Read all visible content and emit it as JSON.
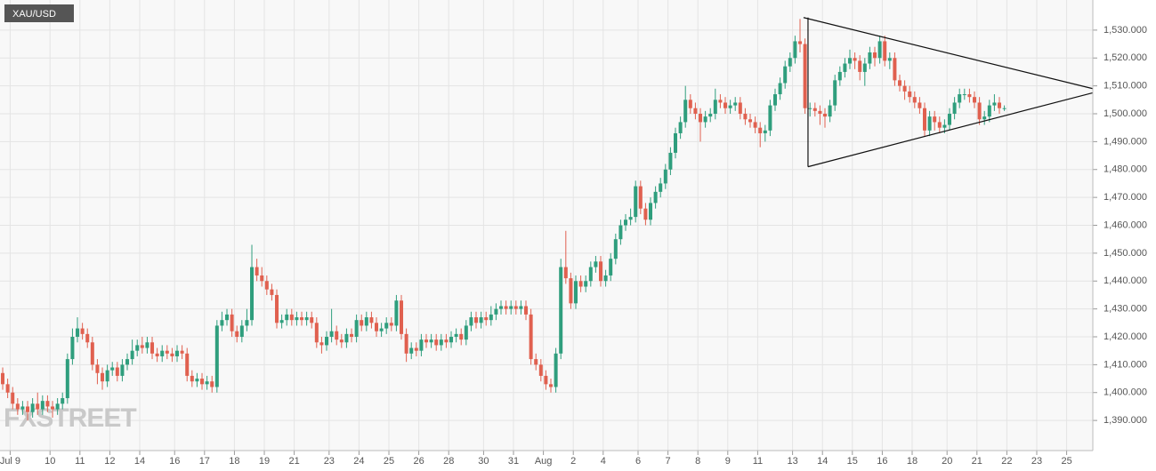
{
  "chart_data": {
    "type": "candlestick",
    "title": "XAU/USD",
    "watermark": "FXSTREET",
    "up_color": "#2f9e7d",
    "down_color": "#e0604f",
    "grid": true,
    "xlim": [
      -0.54,
      218.75
    ],
    "ylim": [
      1379.2,
      1540.8
    ],
    "yticks": [
      {
        "value": 1390,
        "label": "1,390.000"
      },
      {
        "value": 1400,
        "label": "1,400.000"
      },
      {
        "value": 1410,
        "label": "1,410.000"
      },
      {
        "value": 1420,
        "label": "1,420.000"
      },
      {
        "value": 1430,
        "label": "1,430.000"
      },
      {
        "value": 1440,
        "label": "1,440.000"
      },
      {
        "value": 1450,
        "label": "1,450.000"
      },
      {
        "value": 1460,
        "label": "1,460.000"
      },
      {
        "value": 1470,
        "label": "1,470.000"
      },
      {
        "value": 1480,
        "label": "1,480.000"
      },
      {
        "value": 1490,
        "label": "1,490.000"
      },
      {
        "value": 1500,
        "label": "1,500.000"
      },
      {
        "value": 1510,
        "label": "1,510.000"
      },
      {
        "value": 1520,
        "label": "1,520.000"
      },
      {
        "value": 1530,
        "label": "1,530.000"
      }
    ],
    "xticks": [
      {
        "value": 1.5,
        "label": "Jul 9"
      },
      {
        "value": 9.5,
        "label": "10"
      },
      {
        "value": 15.5,
        "label": "11"
      },
      {
        "value": 21.5,
        "label": "12"
      },
      {
        "value": 27.5,
        "label": "14"
      },
      {
        "value": 34.5,
        "label": "16"
      },
      {
        "value": 40.5,
        "label": "17"
      },
      {
        "value": 46.5,
        "label": "18"
      },
      {
        "value": 52.5,
        "label": "19"
      },
      {
        "value": 58.5,
        "label": "21"
      },
      {
        "value": 65.5,
        "label": "23"
      },
      {
        "value": 71.5,
        "label": "24"
      },
      {
        "value": 77.5,
        "label": "25"
      },
      {
        "value": 83.5,
        "label": "26"
      },
      {
        "value": 89.5,
        "label": "28"
      },
      {
        "value": 96.5,
        "label": "30"
      },
      {
        "value": 102.5,
        "label": "31"
      },
      {
        "value": 108.5,
        "label": "Aug"
      },
      {
        "value": 114.5,
        "label": "2"
      },
      {
        "value": 120.5,
        "label": "4"
      },
      {
        "value": 127.5,
        "label": "6"
      },
      {
        "value": 133.5,
        "label": "7"
      },
      {
        "value": 139.5,
        "label": "8"
      },
      {
        "value": 145.5,
        "label": "9"
      },
      {
        "value": 151.5,
        "label": "11"
      },
      {
        "value": 158.5,
        "label": "13"
      },
      {
        "value": 164.5,
        "label": "14"
      },
      {
        "value": 170.5,
        "label": "15"
      },
      {
        "value": 176.5,
        "label": "16"
      },
      {
        "value": 182.5,
        "label": "18"
      },
      {
        "value": 189.5,
        "label": "20"
      },
      {
        "value": 195.5,
        "label": "21"
      },
      {
        "value": 201.5,
        "label": "22"
      },
      {
        "value": 207.5,
        "label": "23"
      },
      {
        "value": 213.5,
        "label": "25"
      }
    ],
    "trendlines": [
      {
        "x": [
          160.7,
          218.75
        ],
        "y": [
          1534.5,
          1509
        ]
      },
      {
        "x": [
          161.6,
          218.75
        ],
        "y": [
          1481,
          1507.5
        ]
      },
      {
        "x": [
          161.6,
          161.6
        ],
        "y": [
          1534.5,
          1481
        ]
      }
    ],
    "candles": {
      "open": [
        1407,
        1403,
        1400,
        1396,
        1394,
        1395,
        1393,
        1396,
        1394,
        1397,
        1395,
        1394,
        1396,
        1398,
        1412,
        1420,
        1423,
        1421,
        1418,
        1410,
        1407,
        1404,
        1408,
        1409,
        1406,
        1410,
        1412,
        1415,
        1417,
        1416,
        1418,
        1414,
        1413,
        1415,
        1414,
        1413,
        1415,
        1414,
        1406,
        1404,
        1405,
        1403,
        1404,
        1402,
        1424,
        1426,
        1428,
        1422,
        1420,
        1424,
        1426,
        1445,
        1442,
        1440,
        1437,
        1435,
        1425,
        1426,
        1428,
        1426,
        1427,
        1426,
        1427,
        1425,
        1418,
        1417,
        1420,
        1422,
        1419,
        1418,
        1421,
        1420,
        1426,
        1424,
        1427,
        1425,
        1422,
        1423,
        1425,
        1424,
        1433,
        1421,
        1414,
        1416,
        1415,
        1419,
        1418,
        1419,
        1417,
        1419,
        1418,
        1420,
        1421,
        1419,
        1424,
        1427,
        1425,
        1427,
        1426,
        1428,
        1430,
        1431,
        1430,
        1431,
        1430,
        1431,
        1428,
        1412,
        1410,
        1406,
        1403,
        1402,
        1414,
        1445,
        1441,
        1432,
        1440,
        1438,
        1440,
        1445,
        1447,
        1440,
        1442,
        1448,
        1455,
        1460,
        1462,
        1463,
        1474,
        1466,
        1462,
        1468,
        1472,
        1475,
        1480,
        1486,
        1493,
        1497,
        1505,
        1502,
        1500,
        1497,
        1499,
        1500,
        1505,
        1504,
        1502,
        1503,
        1504,
        1500,
        1498,
        1497,
        1495,
        1493,
        1494,
        1503,
        1507,
        1511,
        1517,
        1520,
        1526,
        1525,
        1502,
        1502,
        1501,
        1500,
        1499,
        1503,
        1512,
        1515,
        1518,
        1520,
        1519,
        1515,
        1518,
        1522,
        1520,
        1526,
        1519,
        1520,
        1512,
        1510,
        1508,
        1506,
        1504,
        1502,
        1494,
        1499,
        1497,
        1495,
        1496,
        1500,
        1504,
        1507,
        1507,
        1506,
        1504,
        1498,
        1499,
        1503,
        1504,
        1502
      ],
      "high": [
        1409,
        1405,
        1402,
        1398,
        1397,
        1397,
        1398,
        1400,
        1399,
        1399,
        1397,
        1398,
        1400,
        1414,
        1423,
        1427,
        1425,
        1423,
        1420,
        1412,
        1409,
        1410,
        1411,
        1411,
        1412,
        1414,
        1419,
        1419,
        1420,
        1420,
        1420,
        1416,
        1417,
        1417,
        1416,
        1417,
        1417,
        1416,
        1408,
        1407,
        1407,
        1406,
        1406,
        1426,
        1429,
        1430,
        1430,
        1424,
        1426,
        1430,
        1453,
        1448,
        1445,
        1442,
        1439,
        1437,
        1428,
        1430,
        1430,
        1429,
        1429,
        1429,
        1429,
        1427,
        1420,
        1422,
        1430,
        1424,
        1421,
        1423,
        1423,
        1428,
        1428,
        1429,
        1429,
        1427,
        1425,
        1427,
        1427,
        1435,
        1435,
        1423,
        1418,
        1418,
        1421,
        1421,
        1421,
        1421,
        1421,
        1421,
        1422,
        1423,
        1423,
        1426,
        1429,
        1429,
        1429,
        1429,
        1431,
        1432,
        1433,
        1433,
        1433,
        1433,
        1433,
        1433,
        1430,
        1414,
        1412,
        1408,
        1405,
        1416,
        1448,
        1458,
        1443,
        1442,
        1442,
        1442,
        1447,
        1449,
        1449,
        1444,
        1450,
        1457,
        1462,
        1464,
        1466,
        1476,
        1476,
        1468,
        1470,
        1474,
        1477,
        1482,
        1488,
        1495,
        1499,
        1510,
        1507,
        1504,
        1502,
        1501,
        1502,
        1509,
        1507,
        1506,
        1505,
        1506,
        1506,
        1502,
        1500,
        1499,
        1497,
        1496,
        1505,
        1509,
        1513,
        1519,
        1522,
        1528,
        1534,
        1527,
        1504,
        1504,
        1503,
        1502,
        1505,
        1514,
        1517,
        1520,
        1523,
        1522,
        1521,
        1520,
        1524,
        1524,
        1528,
        1528,
        1522,
        1522,
        1514,
        1512,
        1510,
        1508,
        1506,
        1504,
        1501,
        1501,
        1499,
        1498,
        1502,
        1506,
        1509,
        1509,
        1509,
        1508,
        1506,
        1501,
        1505,
        1507,
        1506,
        1503
      ],
      "low": [
        1401,
        1398,
        1394,
        1392,
        1392,
        1390,
        1391,
        1392,
        1392,
        1393,
        1391,
        1392,
        1394,
        1396,
        1410,
        1418,
        1419,
        1416,
        1408,
        1403,
        1401,
        1402,
        1406,
        1404,
        1404,
        1408,
        1410,
        1413,
        1414,
        1414,
        1412,
        1411,
        1411,
        1412,
        1411,
        1411,
        1412,
        1404,
        1402,
        1402,
        1401,
        1401,
        1400,
        1400,
        1422,
        1424,
        1420,
        1418,
        1418,
        1422,
        1424,
        1440,
        1438,
        1435,
        1433,
        1423,
        1423,
        1424,
        1424,
        1424,
        1424,
        1424,
        1423,
        1416,
        1414,
        1415,
        1418,
        1417,
        1416,
        1416,
        1418,
        1418,
        1422,
        1422,
        1423,
        1420,
        1420,
        1421,
        1422,
        1422,
        1419,
        1411,
        1412,
        1413,
        1413,
        1416,
        1416,
        1415,
        1415,
        1416,
        1416,
        1418,
        1417,
        1417,
        1422,
        1423,
        1423,
        1424,
        1424,
        1426,
        1428,
        1428,
        1428,
        1428,
        1428,
        1426,
        1410,
        1408,
        1404,
        1401,
        1400,
        1400,
        1412,
        1439,
        1430,
        1430,
        1436,
        1436,
        1438,
        1443,
        1438,
        1438,
        1440,
        1446,
        1453,
        1458,
        1460,
        1461,
        1464,
        1460,
        1460,
        1466,
        1470,
        1473,
        1478,
        1484,
        1491,
        1495,
        1500,
        1498,
        1490,
        1495,
        1497,
        1498,
        1502,
        1500,
        1500,
        1501,
        1498,
        1496,
        1495,
        1493,
        1488,
        1490,
        1492,
        1501,
        1505,
        1509,
        1515,
        1518,
        1522,
        1500,
        1499,
        1499,
        1496,
        1495,
        1497,
        1501,
        1510,
        1513,
        1516,
        1516,
        1512,
        1510,
        1516,
        1517,
        1518,
        1517,
        1516,
        1510,
        1508,
        1505,
        1504,
        1502,
        1500,
        1492,
        1492,
        1494,
        1493,
        1493,
        1494,
        1498,
        1502,
        1505,
        1504,
        1502,
        1496,
        1496,
        1497,
        1501,
        1500,
        1501
      ],
      "close": [
        1403,
        1400,
        1396,
        1394,
        1395,
        1393,
        1396,
        1394,
        1397,
        1395,
        1394,
        1396,
        1398,
        1412,
        1420,
        1423,
        1421,
        1418,
        1410,
        1407,
        1404,
        1408,
        1409,
        1406,
        1410,
        1412,
        1415,
        1417,
        1416,
        1418,
        1414,
        1413,
        1415,
        1414,
        1413,
        1415,
        1414,
        1406,
        1404,
        1405,
        1403,
        1404,
        1402,
        1424,
        1426,
        1428,
        1422,
        1420,
        1424,
        1426,
        1445,
        1442,
        1440,
        1437,
        1435,
        1425,
        1426,
        1428,
        1426,
        1427,
        1426,
        1427,
        1425,
        1418,
        1417,
        1420,
        1422,
        1419,
        1418,
        1421,
        1420,
        1426,
        1424,
        1427,
        1425,
        1422,
        1423,
        1425,
        1424,
        1433,
        1421,
        1414,
        1416,
        1415,
        1419,
        1418,
        1419,
        1417,
        1419,
        1418,
        1420,
        1421,
        1419,
        1424,
        1427,
        1425,
        1427,
        1426,
        1428,
        1430,
        1431,
        1430,
        1431,
        1430,
        1431,
        1428,
        1412,
        1410,
        1406,
        1403,
        1402,
        1414,
        1445,
        1441,
        1432,
        1440,
        1438,
        1440,
        1445,
        1447,
        1440,
        1442,
        1448,
        1455,
        1460,
        1462,
        1463,
        1474,
        1466,
        1462,
        1468,
        1472,
        1475,
        1480,
        1486,
        1493,
        1497,
        1505,
        1502,
        1500,
        1497,
        1499,
        1500,
        1505,
        1504,
        1502,
        1503,
        1504,
        1500,
        1498,
        1497,
        1495,
        1493,
        1494,
        1503,
        1507,
        1511,
        1517,
        1520,
        1526,
        1525,
        1502,
        1502,
        1501,
        1500,
        1499,
        1503,
        1512,
        1515,
        1518,
        1520,
        1519,
        1515,
        1518,
        1522,
        1520,
        1526,
        1519,
        1520,
        1512,
        1510,
        1508,
        1506,
        1504,
        1502,
        1494,
        1499,
        1497,
        1495,
        1496,
        1500,
        1504,
        1507,
        1507,
        1506,
        1504,
        1498,
        1499,
        1503,
        1504,
        1502,
        1502
      ]
    }
  }
}
